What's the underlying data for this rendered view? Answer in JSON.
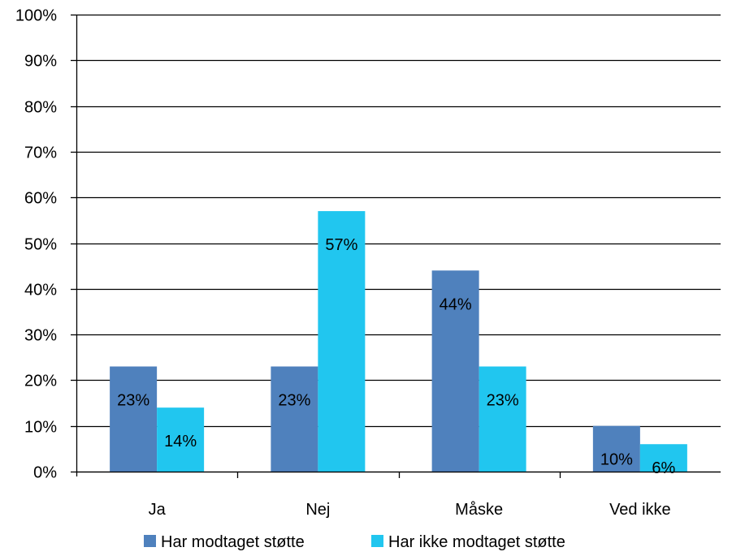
{
  "chart_data": {
    "type": "bar",
    "title": "",
    "xlabel": "",
    "ylabel": "",
    "categories": [
      "Ja",
      "Nej",
      "Måske",
      "Ved ikke"
    ],
    "series": [
      {
        "name": "Har modtaget støtte",
        "color": "#4f81bd",
        "values": [
          23,
          23,
          44,
          10
        ],
        "labels": [
          "23%",
          "23%",
          "44%",
          "10%"
        ]
      },
      {
        "name": "Har ikke modtaget støtte",
        "color": "#21c6ef",
        "values": [
          14,
          57,
          23,
          6
        ],
        "labels": [
          "14%",
          "57%",
          "23%",
          "6%"
        ]
      }
    ],
    "ylim": [
      0,
      100
    ],
    "y_ticks": [
      0,
      10,
      20,
      30,
      40,
      50,
      60,
      70,
      80,
      90,
      100
    ],
    "y_tick_labels": [
      "0%",
      "10%",
      "20%",
      "30%",
      "40%",
      "50%",
      "60%",
      "70%",
      "80%",
      "90%",
      "100%"
    ],
    "grid": true,
    "legend_position": "bottom",
    "colors": {
      "gridline": "#000000",
      "axis": "#000000"
    }
  }
}
